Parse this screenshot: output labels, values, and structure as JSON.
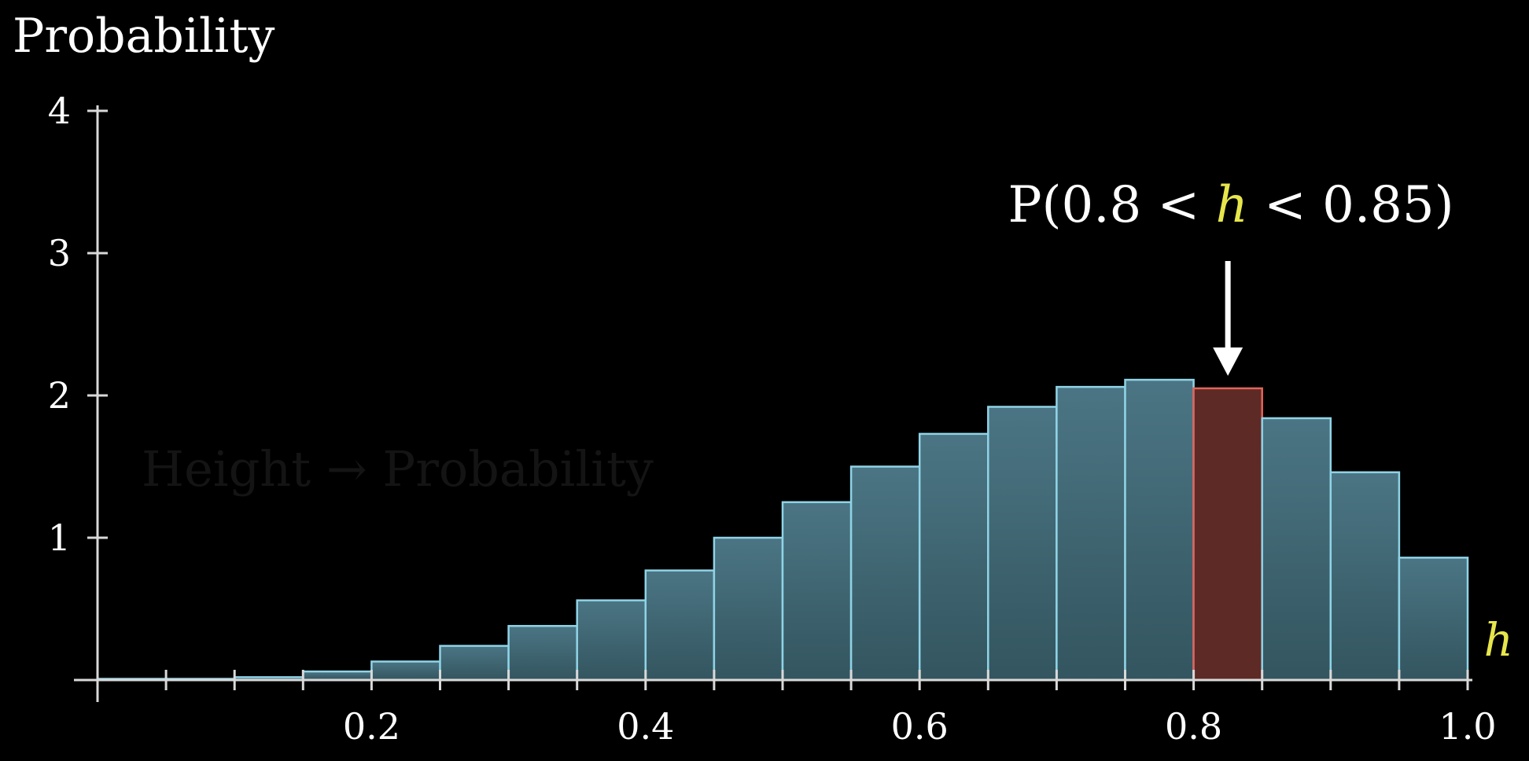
{
  "chart_data": {
    "type": "bar",
    "ylabel": "Probability",
    "xlabel": "h",
    "xlim": [
      0,
      1.0
    ],
    "ylim": [
      0,
      4
    ],
    "x_ticks": [
      0.2,
      0.4,
      0.6,
      0.8,
      1.0
    ],
    "x_tick_labels": [
      "0.2",
      "0.4",
      "0.6",
      "0.8",
      "1.0"
    ],
    "y_ticks": [
      1,
      2,
      3,
      4
    ],
    "y_tick_labels": [
      "1",
      "2",
      "3",
      "4"
    ],
    "bin_width": 0.05,
    "bins": [
      {
        "x0": 0.0,
        "x1": 0.05,
        "value": 0.0
      },
      {
        "x0": 0.05,
        "x1": 0.1,
        "value": 0.0
      },
      {
        "x0": 0.1,
        "x1": 0.15,
        "value": 0.02
      },
      {
        "x0": 0.15,
        "x1": 0.2,
        "value": 0.06
      },
      {
        "x0": 0.2,
        "x1": 0.25,
        "value": 0.13
      },
      {
        "x0": 0.25,
        "x1": 0.3,
        "value": 0.24
      },
      {
        "x0": 0.3,
        "x1": 0.35,
        "value": 0.38
      },
      {
        "x0": 0.35,
        "x1": 0.4,
        "value": 0.56
      },
      {
        "x0": 0.4,
        "x1": 0.45,
        "value": 0.77
      },
      {
        "x0": 0.45,
        "x1": 0.5,
        "value": 1.0
      },
      {
        "x0": 0.5,
        "x1": 0.55,
        "value": 1.25
      },
      {
        "x0": 0.55,
        "x1": 0.6,
        "value": 1.5
      },
      {
        "x0": 0.6,
        "x1": 0.65,
        "value": 1.73
      },
      {
        "x0": 0.65,
        "x1": 0.7,
        "value": 1.92
      },
      {
        "x0": 0.7,
        "x1": 0.75,
        "value": 2.06
      },
      {
        "x0": 0.75,
        "x1": 0.8,
        "value": 2.11
      },
      {
        "x0": 0.8,
        "x1": 0.85,
        "value": 2.05,
        "highlight": true
      },
      {
        "x0": 0.85,
        "x1": 0.9,
        "value": 1.84
      },
      {
        "x0": 0.9,
        "x1": 0.95,
        "value": 1.46
      },
      {
        "x0": 0.95,
        "x1": 1.0,
        "value": 0.86
      }
    ],
    "annotation": {
      "prefix": "P(0.8 < ",
      "variable": "h",
      "suffix": " < 0.85)",
      "target_bin": 16
    },
    "faded_caption": "Height → Probability",
    "grid": false,
    "legend": "none",
    "colors": {
      "background": "#000000",
      "bar_fill": "#3b6270",
      "bar_stroke": "#8fd3e6",
      "highlight_fill": "#5e2a26",
      "highlight_stroke": "#e2645a",
      "variable": "#e6e64c",
      "axis": "#d9d9d9",
      "text": "#ffffff"
    }
  }
}
